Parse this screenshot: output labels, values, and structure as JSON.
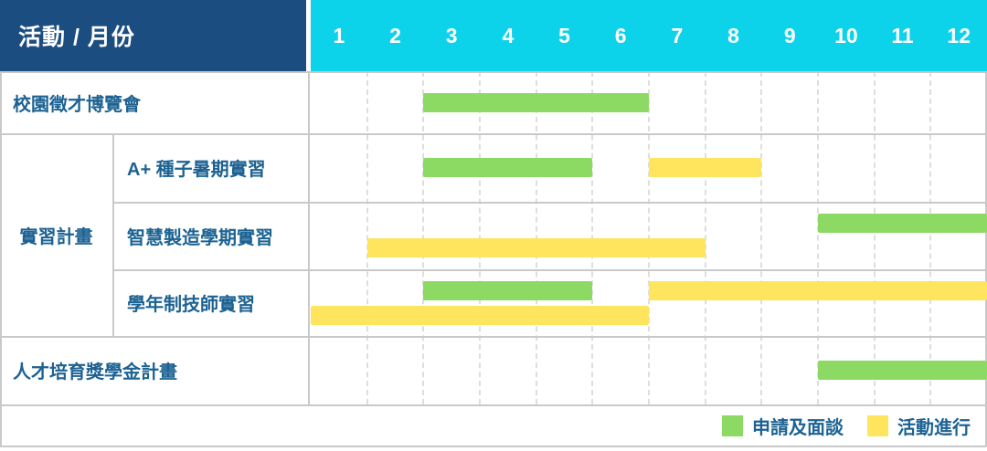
{
  "colors": {
    "header_navy": "#1b4d80",
    "header_cyan": "#0cd2ea",
    "bar_green": "#8cd963",
    "bar_yellow": "#ffe45e",
    "label_text": "#1c6292",
    "solid_line": "#c9c9c9",
    "month_line": "#dedede"
  },
  "chart_data": {
    "type": "gantt",
    "corner_label": "活動 / 月份",
    "months": [
      "1",
      "2",
      "3",
      "4",
      "5",
      "6",
      "7",
      "8",
      "9",
      "10",
      "11",
      "12"
    ],
    "x_range": [
      1,
      12
    ],
    "grid": "dashed-vertical-month-lines",
    "legend_position": "bottom-right",
    "legend": [
      {
        "key": "apply",
        "label": "申請及面談",
        "color": "#8cd963"
      },
      {
        "key": "ongoing",
        "label": "活動進行",
        "color": "#ffe45e"
      }
    ],
    "group_label": "實習計畫",
    "rows": [
      {
        "label": "校園徵才博覽會",
        "group": false,
        "lanes": [
          [
            {
              "type": "apply",
              "start": 3,
              "end": 6
            }
          ]
        ]
      },
      {
        "label": "A+ 種子暑期實習",
        "group": true,
        "lanes": [
          [
            {
              "type": "apply",
              "start": 3,
              "end": 5
            },
            {
              "type": "ongoing",
              "start": 7,
              "end": 8
            }
          ]
        ]
      },
      {
        "label": "智慧製造學期實習",
        "group": true,
        "lanes": [
          [
            {
              "type": "apply",
              "start": 10,
              "end": 12
            }
          ],
          [
            {
              "type": "ongoing",
              "start": 2,
              "end": 7
            }
          ]
        ]
      },
      {
        "label": "學年制技師實習",
        "group": true,
        "lanes": [
          [
            {
              "type": "apply",
              "start": 3,
              "end": 5
            },
            {
              "type": "ongoing",
              "start": 7,
              "end": 12
            }
          ],
          [
            {
              "type": "ongoing",
              "start": 1,
              "end": 6
            }
          ]
        ]
      },
      {
        "label": "人才培育獎學金計畫",
        "group": false,
        "lanes": [
          [
            {
              "type": "apply",
              "start": 10,
              "end": 12
            }
          ]
        ]
      }
    ]
  }
}
